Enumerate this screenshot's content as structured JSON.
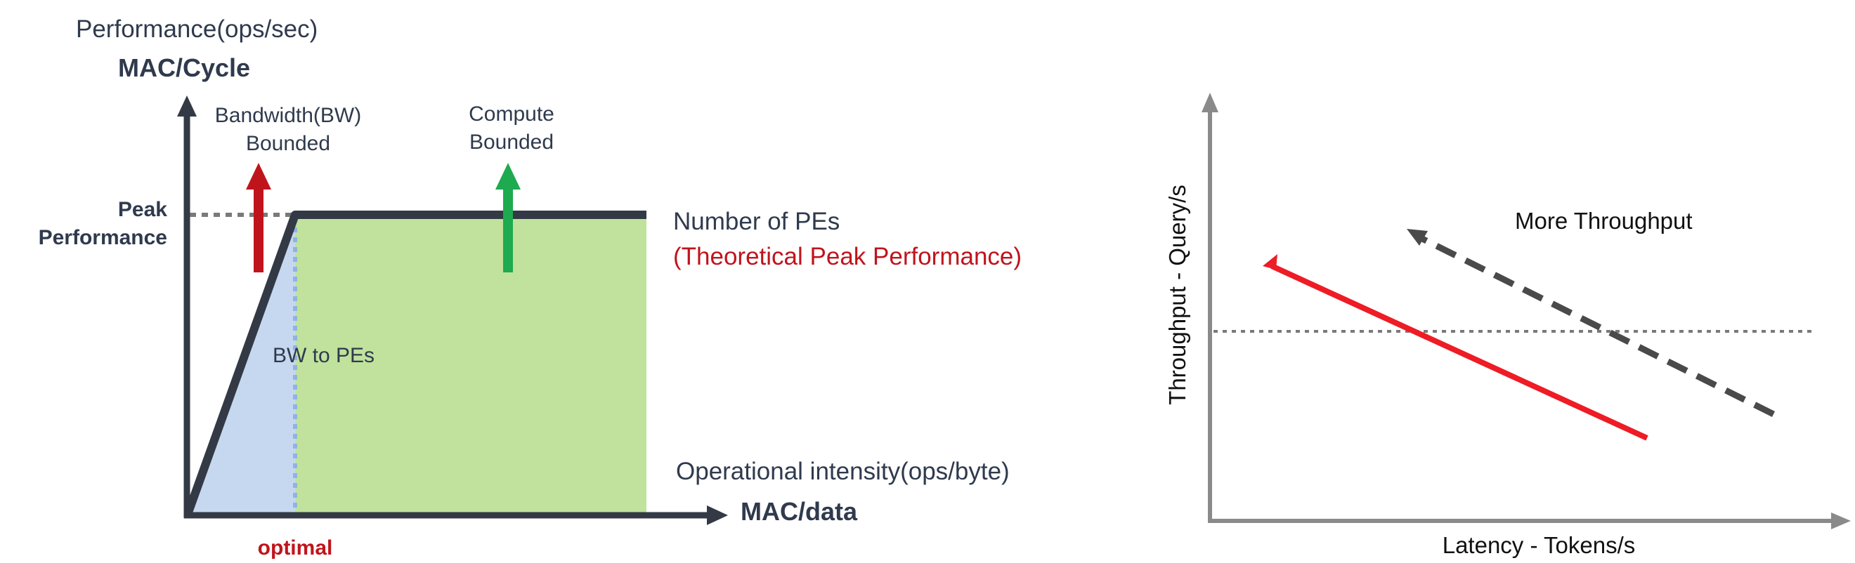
{
  "roofline": {
    "y_axis_title": "Performance(ops/sec)",
    "y_axis_unit": "MAC/Cycle",
    "bw_bounded_label_line1": "Bandwidth(BW)",
    "bw_bounded_label_line2": "Bounded",
    "compute_bounded_label_line1": "Compute",
    "compute_bounded_label_line2": "Bounded",
    "peak_label_line1": "Peak",
    "peak_label_line2": "Performance",
    "roof_label": "Number of PEs",
    "roof_sublabel": "(Theoretical Peak Performance)",
    "slope_label": "BW to PEs",
    "x_axis_title": "Operational intensity(ops/byte)",
    "x_axis_unit": "MAC/data",
    "optimal_label": "optimal",
    "colors": {
      "axis": "#333a45",
      "bw_region": "#c6d8ef",
      "compute_region": "#c0e29c",
      "bw_arrow": "#c0141c",
      "compute_arrow": "#1eaa4f",
      "highlight_text": "#c0141c",
      "dotted": "#7a7a7a",
      "ridge_dotted": "#8fb4e3"
    }
  },
  "latency_chart": {
    "y_axis_label": "Throughput - Query/s",
    "x_axis_label": "Latency - Tokens/s",
    "annotation": "More Throughput",
    "colors": {
      "axis": "#8a8a8a",
      "red_line": "#ee1c25",
      "dashed_line": "#4a4a4a",
      "dotted": "#7a7a7a"
    }
  }
}
